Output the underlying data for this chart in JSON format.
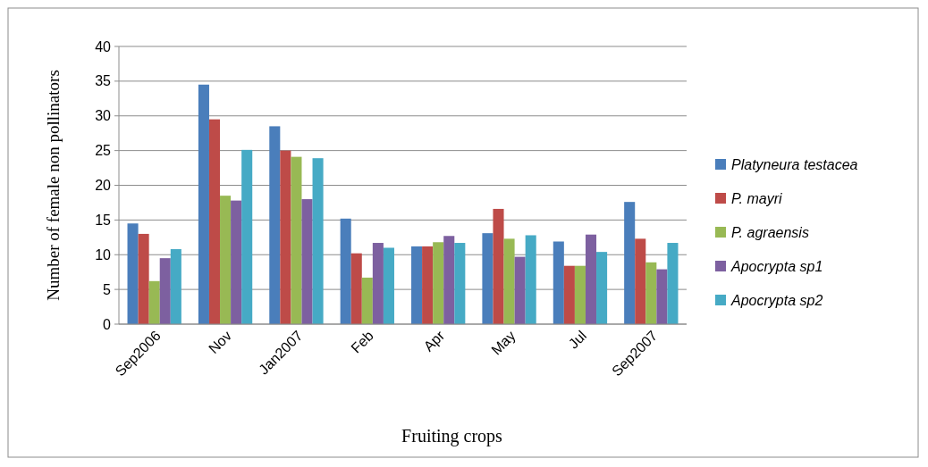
{
  "chart_data": {
    "type": "bar",
    "xlabel": "Fruiting crops",
    "ylabel": "Number of female non pollinators",
    "categories": [
      "Sep2006",
      "Nov",
      "Jan2007",
      "Feb",
      "Apr",
      "May",
      "Jul",
      "Sep2007"
    ],
    "series": [
      {
        "name": "Platyneura testacea",
        "color": "#4a7ebb",
        "values": [
          14.5,
          34.5,
          28.5,
          15.2,
          11.2,
          13.1,
          11.9,
          17.6
        ]
      },
      {
        "name": "P. mayri",
        "color": "#be4b48",
        "values": [
          13,
          29.5,
          25,
          10.2,
          11.2,
          16.6,
          8.4,
          12.3
        ]
      },
      {
        "name": "P. agraensis",
        "color": "#98b954",
        "values": [
          6.2,
          18.5,
          24.1,
          6.7,
          11.8,
          12.3,
          8.4,
          8.9
        ]
      },
      {
        "name": "Apocrypta sp1",
        "color": "#7d60a0",
        "values": [
          9.5,
          17.8,
          18,
          11.7,
          12.7,
          9.7,
          12.9,
          7.9
        ]
      },
      {
        "name": "Apocrypta sp2",
        "color": "#46aac5",
        "values": [
          10.8,
          25.1,
          23.9,
          11,
          11.7,
          12.8,
          10.4,
          11.7
        ]
      }
    ],
    "ylim": [
      0,
      40
    ],
    "yticks": [
      0,
      5,
      10,
      15,
      20,
      25,
      30,
      35,
      40
    ],
    "grid": "y",
    "legend": "right"
  }
}
